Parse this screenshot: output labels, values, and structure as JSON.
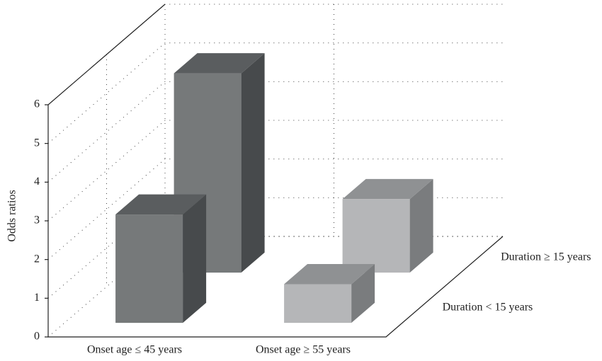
{
  "chart_data": {
    "type": "bar3d",
    "y_label": "Odds ratios",
    "categories": [
      "Onset age ≤ 45 years",
      "Onset age ≥ 55 years"
    ],
    "category_colors": [
      "#76797a",
      "#b5b6b8"
    ],
    "series": [
      {
        "name": "Duration < 15 years",
        "values": [
          2.8,
          1.0
        ]
      },
      {
        "name": "Duration ≥ 15 years",
        "values": [
          5.15,
          1.9
        ]
      }
    ],
    "ylim": [
      0,
      6
    ],
    "yticks": [
      0,
      1,
      2,
      3,
      4,
      5,
      6
    ],
    "grid": true
  }
}
